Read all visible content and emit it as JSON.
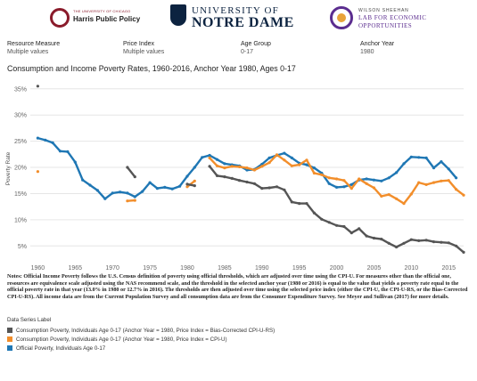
{
  "logos": {
    "harris_small": "THE UNIVERSITY OF CHICAGO",
    "harris_name": "Harris Public Policy",
    "nd_line1": "UNIVERSITY OF",
    "nd_line2": "NOTRE DAME",
    "wilson_line1": "WILSON SHEEHAN",
    "wilson_line2": "LAB FOR ECONOMIC",
    "wilson_line3": "OPPORTUNITIES"
  },
  "filters": [
    {
      "label": "Resource Measure",
      "value": "Multiple values"
    },
    {
      "label": "Price Index",
      "value": "Multiple values"
    },
    {
      "label": "Age Group",
      "value": "0-17"
    },
    {
      "label": "Anchor Year",
      "value": "1980"
    }
  ],
  "title": "Consumption and Income Poverty Rates, 1960-2016, Anchor Year 1980, Ages 0-17",
  "notes": "Notes: Official Income Poverty follows the U.S. Census definition of poverty using official thresholds, which are adjusted over time using the CPI-U. For measures other than the official one, resources are equivalence scale adjusted using the NAS recommend scale, and the threshold in the selected anchor year (1980 or 2016) is equal to the value that yields a poverty rate equal to the official poverty rate in that year  (13.0% in 1980 or 12.7% in 2016).  The thresholds are then adjusted over time using the selected price index (either the CPI-U, the CPI-U-RS, or the Bias-Corrected CPI-U-RS). All income data are from the Current Population Survey and all consumption data are from the Consumer Expenditure Survey. See Meyer and Sullivan (2017) for more details.",
  "legend": {
    "title": "Data Series Label",
    "items": [
      {
        "label": "Consumption Poverty, Individuals Age 0-17 (Anchor Year = 1980, Price Index = Bias-Corrected CPI-U-RS)",
        "color": "#555555"
      },
      {
        "label": "Consumption Poverty, Individuals Age 0-17 (Anchor Year = 1980, Price Index = CPI-U)",
        "color": "#f28e2b"
      },
      {
        "label": "Official Poverty, Individuals Age 0-17",
        "color": "#1f77b4"
      }
    ]
  },
  "chart_data": {
    "type": "line",
    "title": "Consumption and Income Poverty Rates, 1960-2016, Anchor Year 1980, Ages 0-17",
    "ylabel": "Poverty Rate",
    "xlabel": "",
    "xlim": [
      1959,
      2017
    ],
    "ylim": [
      2.5,
      37
    ],
    "x_ticks": [
      1960,
      1965,
      1970,
      1975,
      1980,
      1985,
      1990,
      1995,
      2000,
      2005,
      2010,
      2015
    ],
    "y_ticks": [
      5,
      10,
      15,
      20,
      25,
      30,
      35
    ],
    "y_tick_labels": [
      "5%",
      "10%",
      "15%",
      "20%",
      "25%",
      "30%",
      "35%"
    ],
    "grid": true,
    "series": [
      {
        "name": "Official Poverty, Individuals Age 0-17",
        "color": "#1f77b4",
        "segments": [
          [
            [
              1960,
              25.6
            ],
            [
              1961,
              25.2
            ],
            [
              1962,
              24.7
            ],
            [
              1963,
              23.1
            ],
            [
              1964,
              23.0
            ],
            [
              1965,
              21.0
            ],
            [
              1966,
              17.6
            ],
            [
              1967,
              16.6
            ],
            [
              1968,
              15.6
            ],
            [
              1969,
              14.0
            ],
            [
              1970,
              15.1
            ],
            [
              1971,
              15.3
            ],
            [
              1972,
              15.1
            ],
            [
              1973,
              14.4
            ],
            [
              1974,
              15.4
            ],
            [
              1975,
              17.1
            ],
            [
              1976,
              16.0
            ],
            [
              1977,
              16.2
            ],
            [
              1978,
              15.9
            ],
            [
              1979,
              16.4
            ],
            [
              1980,
              18.3
            ],
            [
              1981,
              20.0
            ],
            [
              1982,
              21.9
            ],
            [
              1983,
              22.3
            ],
            [
              1984,
              21.5
            ],
            [
              1985,
              20.7
            ],
            [
              1986,
              20.5
            ],
            [
              1987,
              20.3
            ],
            [
              1988,
              19.5
            ],
            [
              1989,
              19.6
            ],
            [
              1990,
              20.6
            ],
            [
              1991,
              21.8
            ],
            [
              1992,
              22.3
            ],
            [
              1993,
              22.7
            ],
            [
              1994,
              21.8
            ],
            [
              1995,
              20.8
            ],
            [
              1996,
              20.5
            ],
            [
              1997,
              19.9
            ],
            [
              1998,
              18.9
            ],
            [
              1999,
              16.9
            ],
            [
              2000,
              16.2
            ],
            [
              2001,
              16.3
            ],
            [
              2002,
              16.7
            ],
            [
              2003,
              17.6
            ],
            [
              2004,
              17.8
            ],
            [
              2005,
              17.6
            ],
            [
              2006,
              17.4
            ],
            [
              2007,
              18.0
            ],
            [
              2008,
              19.0
            ],
            [
              2009,
              20.7
            ],
            [
              2010,
              22.0
            ],
            [
              2011,
              21.9
            ],
            [
              2012,
              21.8
            ],
            [
              2013,
              19.9
            ],
            [
              2014,
              21.1
            ],
            [
              2015,
              19.7
            ],
            [
              2016,
              18.0
            ]
          ]
        ]
      },
      {
        "name": "Consumption Poverty, Individuals Age 0-17 (Anchor Year = 1980, Price Index = CPI-U)",
        "color": "#f28e2b",
        "segments": [
          [
            [
              1960,
              19.2
            ]
          ],
          [
            [
              1972,
              13.6
            ],
            [
              1973,
              13.7
            ]
          ],
          [
            [
              1980,
              16.3
            ],
            [
              1981,
              17.4
            ]
          ],
          [
            [
              1983,
              21.8
            ],
            [
              1984,
              20.3
            ],
            [
              1985,
              19.9
            ],
            [
              1986,
              20.2
            ],
            [
              1987,
              20.1
            ],
            [
              1988,
              19.9
            ],
            [
              1989,
              19.5
            ],
            [
              1990,
              20.2
            ],
            [
              1991,
              20.9
            ],
            [
              1992,
              22.4
            ],
            [
              1993,
              21.4
            ],
            [
              1994,
              20.3
            ],
            [
              1995,
              20.5
            ],
            [
              1996,
              21.4
            ],
            [
              1997,
              18.9
            ],
            [
              1998,
              18.6
            ],
            [
              1999,
              18.0
            ],
            [
              2000,
              17.8
            ],
            [
              2001,
              17.5
            ],
            [
              2002,
              16.0
            ],
            [
              2003,
              17.8
            ],
            [
              2004,
              16.9
            ],
            [
              2005,
              16.1
            ],
            [
              2006,
              14.5
            ],
            [
              2007,
              14.8
            ],
            [
              2008,
              14.0
            ],
            [
              2009,
              13.1
            ],
            [
              2010,
              14.9
            ],
            [
              2011,
              17.1
            ],
            [
              2012,
              16.7
            ],
            [
              2013,
              17.1
            ],
            [
              2014,
              17.4
            ],
            [
              2015,
              17.5
            ],
            [
              2016,
              15.8
            ],
            [
              2017,
              14.7
            ]
          ]
        ]
      },
      {
        "name": "Consumption Poverty, Individuals Age 0-17 (Anchor Year = 1980, Price Index = Bias-Corrected CPI-U-RS)",
        "color": "#555555",
        "segments": [
          [
            [
              1960,
              35.5
            ]
          ],
          [
            [
              1972,
              20.0
            ],
            [
              1973,
              18.2
            ]
          ],
          [
            [
              1980,
              16.8
            ],
            [
              1981,
              16.5
            ]
          ],
          [
            [
              1983,
              20.2
            ],
            [
              1984,
              18.4
            ],
            [
              1985,
              18.2
            ],
            [
              1986,
              17.9
            ],
            [
              1987,
              17.5
            ],
            [
              1988,
              17.2
            ],
            [
              1989,
              16.9
            ],
            [
              1990,
              16.0
            ],
            [
              1991,
              16.1
            ],
            [
              1992,
              16.3
            ],
            [
              1993,
              15.7
            ],
            [
              1994,
              13.4
            ],
            [
              1995,
              13.1
            ],
            [
              1996,
              13.1
            ],
            [
              1997,
              11.3
            ],
            [
              1998,
              10.1
            ],
            [
              1999,
              9.5
            ],
            [
              2000,
              8.9
            ],
            [
              2001,
              8.7
            ],
            [
              2002,
              7.5
            ],
            [
              2003,
              8.3
            ],
            [
              2004,
              6.9
            ],
            [
              2005,
              6.5
            ],
            [
              2006,
              6.3
            ],
            [
              2007,
              5.5
            ],
            [
              2008,
              4.8
            ],
            [
              2009,
              5.5
            ],
            [
              2010,
              6.2
            ],
            [
              2011,
              6.0
            ],
            [
              2012,
              6.1
            ],
            [
              2013,
              5.8
            ],
            [
              2014,
              5.7
            ],
            [
              2015,
              5.6
            ],
            [
              2016,
              5.0
            ],
            [
              2017,
              3.8
            ]
          ]
        ]
      }
    ]
  }
}
